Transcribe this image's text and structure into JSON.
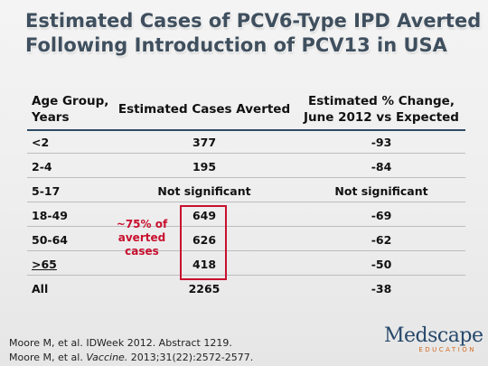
{
  "title": {
    "line1": "Estimated Cases of PCV6-Type IPD Averted",
    "line2": "Following Introduction of PCV13 in USA"
  },
  "table": {
    "headers": {
      "age_line1": "Age Group,",
      "age_line2": "Years",
      "cases": "Estimated Cases Averted",
      "pct_line1": "Estimated % Change,",
      "pct_line2": "June 2012 vs Expected"
    },
    "rows": [
      {
        "age": "<2",
        "cases": "377",
        "pct": "-93"
      },
      {
        "age": "2-4",
        "cases": "195",
        "pct": "-84"
      },
      {
        "age": "5-17",
        "cases": "Not significant",
        "pct": "Not significant"
      },
      {
        "age": "18-49",
        "cases": "649",
        "pct": "-69"
      },
      {
        "age": "50-64",
        "cases": "626",
        "pct": "-62"
      },
      {
        "age": ">65",
        "cases": "418",
        "pct": "-50"
      },
      {
        "age": "All",
        "cases": "2265",
        "pct": "-38"
      }
    ]
  },
  "annotation": {
    "line1": "~75% of",
    "line2": "averted",
    "line3": "cases"
  },
  "references": {
    "ref1": "Moore M, et al. IDWeek 2012. Abstract 1219.",
    "ref2_prefix": "Moore M, et al. ",
    "ref2_journal": "Vaccine.",
    "ref2_suffix": " 2013;31(22):2572-2577."
  },
  "logo": {
    "name": "Medscape",
    "sub": "EDUCATION"
  },
  "colors": {
    "title": "#3f4f5e",
    "accent_red": "#c8102e",
    "header_rule": "#2f4a66",
    "logo_blue": "#27486b",
    "logo_orange": "#d2691e"
  }
}
